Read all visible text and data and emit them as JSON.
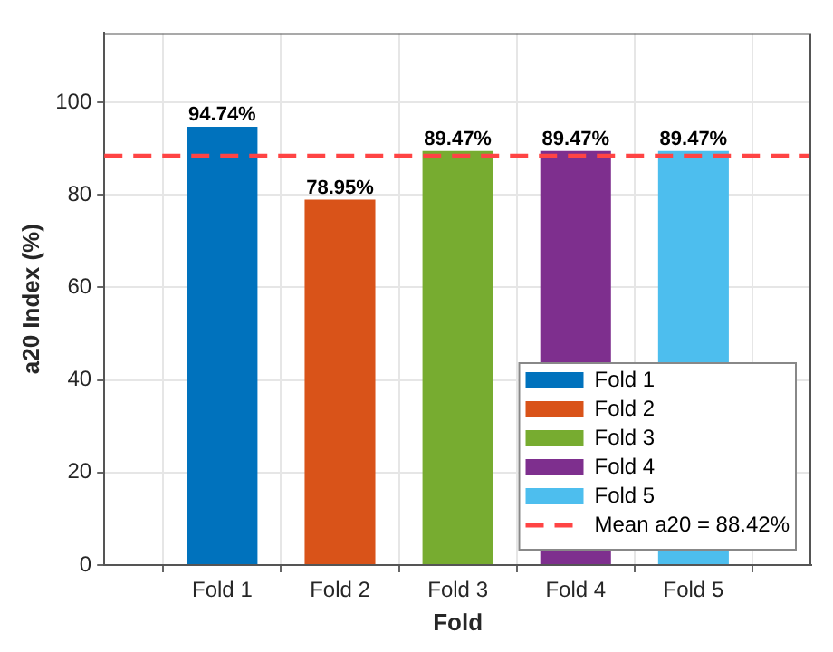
{
  "chart_data": {
    "type": "bar",
    "xlabel": "Fold",
    "ylabel": "a20 Index (%)",
    "categories": [
      "Fold 1",
      "Fold 2",
      "Fold 3",
      "Fold 4",
      "Fold 5"
    ],
    "series": [
      {
        "name": "Fold 1",
        "color": "#0072bd",
        "values": [
          94.74,
          null,
          null,
          null,
          null
        ],
        "value_labels": [
          "94.74%",
          null,
          null,
          null,
          null
        ]
      },
      {
        "name": "Fold 2",
        "color": "#d95319",
        "values": [
          null,
          78.95,
          null,
          null,
          null
        ],
        "value_labels": [
          null,
          "78.95%",
          null,
          null,
          null
        ]
      },
      {
        "name": "Fold 3",
        "color": "#77ac30",
        "values": [
          null,
          null,
          89.47,
          null,
          null
        ],
        "value_labels": [
          null,
          null,
          "89.47%",
          null,
          null
        ]
      },
      {
        "name": "Fold 4",
        "color": "#7e2f8e",
        "values": [
          null,
          null,
          null,
          89.47,
          null
        ],
        "value_labels": [
          null,
          null,
          null,
          "89.47%",
          null
        ]
      },
      {
        "name": "Fold 5",
        "color": "#4dbeee",
        "values": [
          null,
          null,
          null,
          null,
          89.47
        ],
        "value_labels": [
          null,
          null,
          null,
          null,
          "89.47%"
        ]
      }
    ],
    "ylim": [
      0,
      115
    ],
    "yticks": [
      0,
      20,
      40,
      60,
      80,
      100
    ],
    "ref_lines": [
      {
        "axis": "y",
        "value": 88.42,
        "label": "Mean a20 = 88.42%",
        "color": "#ff4444",
        "line_style": "dashed"
      }
    ],
    "grid": true,
    "legend": "bottom right"
  }
}
